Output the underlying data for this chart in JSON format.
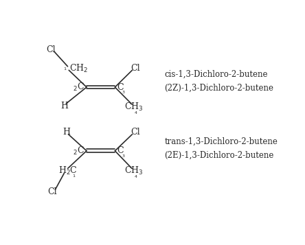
{
  "background_color": "#ffffff",
  "figsize": [
    4.44,
    3.57
  ],
  "dpi": 100,
  "cis_label1": "cis-1,3-Dichloro-2-butene",
  "cis_label2": "(2Z)-1,3-Dichloro-2-butene",
  "trans_label1": "trans-1,3-Dichloro-2-butene",
  "trans_label2": "(2E)-1,3-Dichloro-2-butene",
  "font_size_label": 8.5,
  "font_size_atom": 9,
  "font_size_sub": 6.5,
  "line_color": "#2a2a2a",
  "text_color": "#2a2a2a"
}
